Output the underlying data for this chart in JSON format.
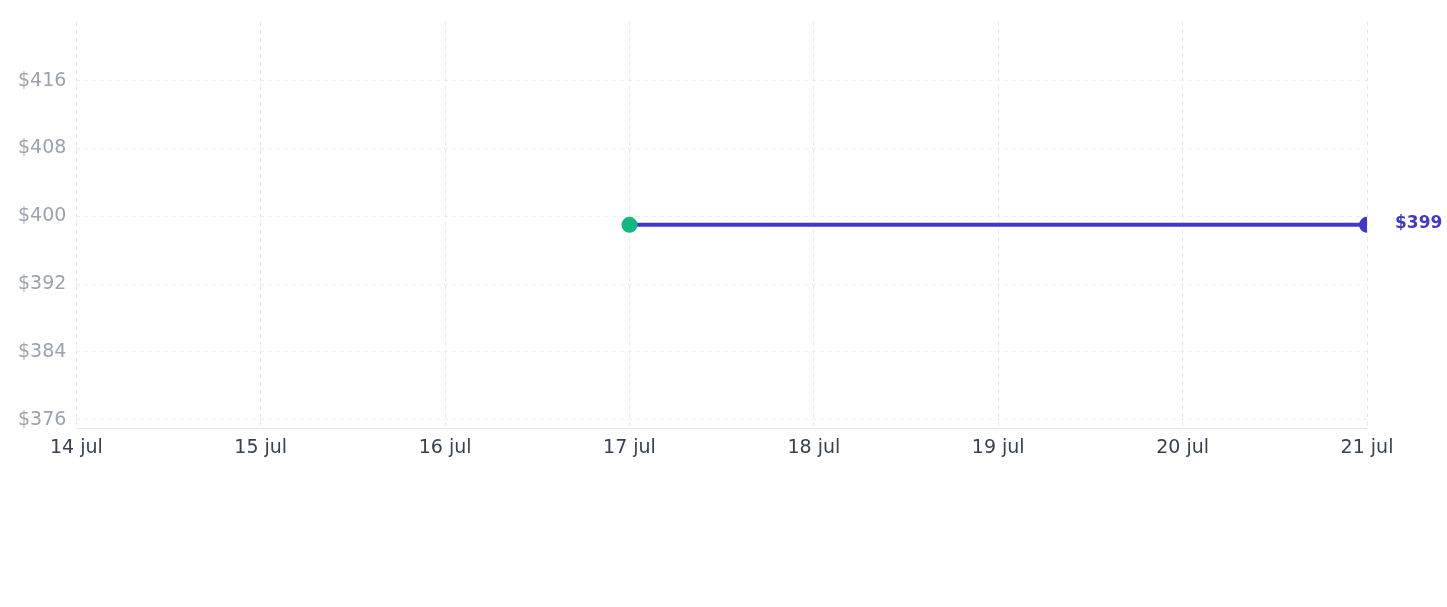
{
  "chart_data": {
    "type": "line",
    "x": [
      "--07-17",
      "--07-21"
    ],
    "series": [
      {
        "color": "#4338ca",
        "colors": [
          "#10b981",
          "#4338ca"
        ],
        "values": [
          399,
          399
        ],
        "value_labels": [
          null,
          "$399"
        ]
      }
    ],
    "xlim": [
      "--07-14",
      "--07-21"
    ],
    "xticks": [
      {
        "value": "--07-14",
        "label": "14 jul"
      },
      {
        "value": "--07-15",
        "label": "15 jul"
      },
      {
        "value": "--07-16",
        "label": "16 jul"
      },
      {
        "value": "--07-17",
        "label": "17 jul"
      },
      {
        "value": "--07-18",
        "label": "18 jul"
      },
      {
        "value": "--07-19",
        "label": "19 jul"
      },
      {
        "value": "--07-20",
        "label": "20 jul"
      },
      {
        "value": "--07-21",
        "label": "21 jul"
      }
    ],
    "ylim": [
      375,
      423
    ],
    "yticks": [
      {
        "value": 376,
        "label": "$376"
      },
      {
        "value": 384,
        "label": "$384"
      },
      {
        "value": 392,
        "label": "$392"
      },
      {
        "value": 400,
        "label": "$400"
      },
      {
        "value": 408,
        "label": "$408"
      },
      {
        "value": 416,
        "label": "$416"
      }
    ],
    "grid": true,
    "marker": "circle",
    "line_style": "solid"
  }
}
